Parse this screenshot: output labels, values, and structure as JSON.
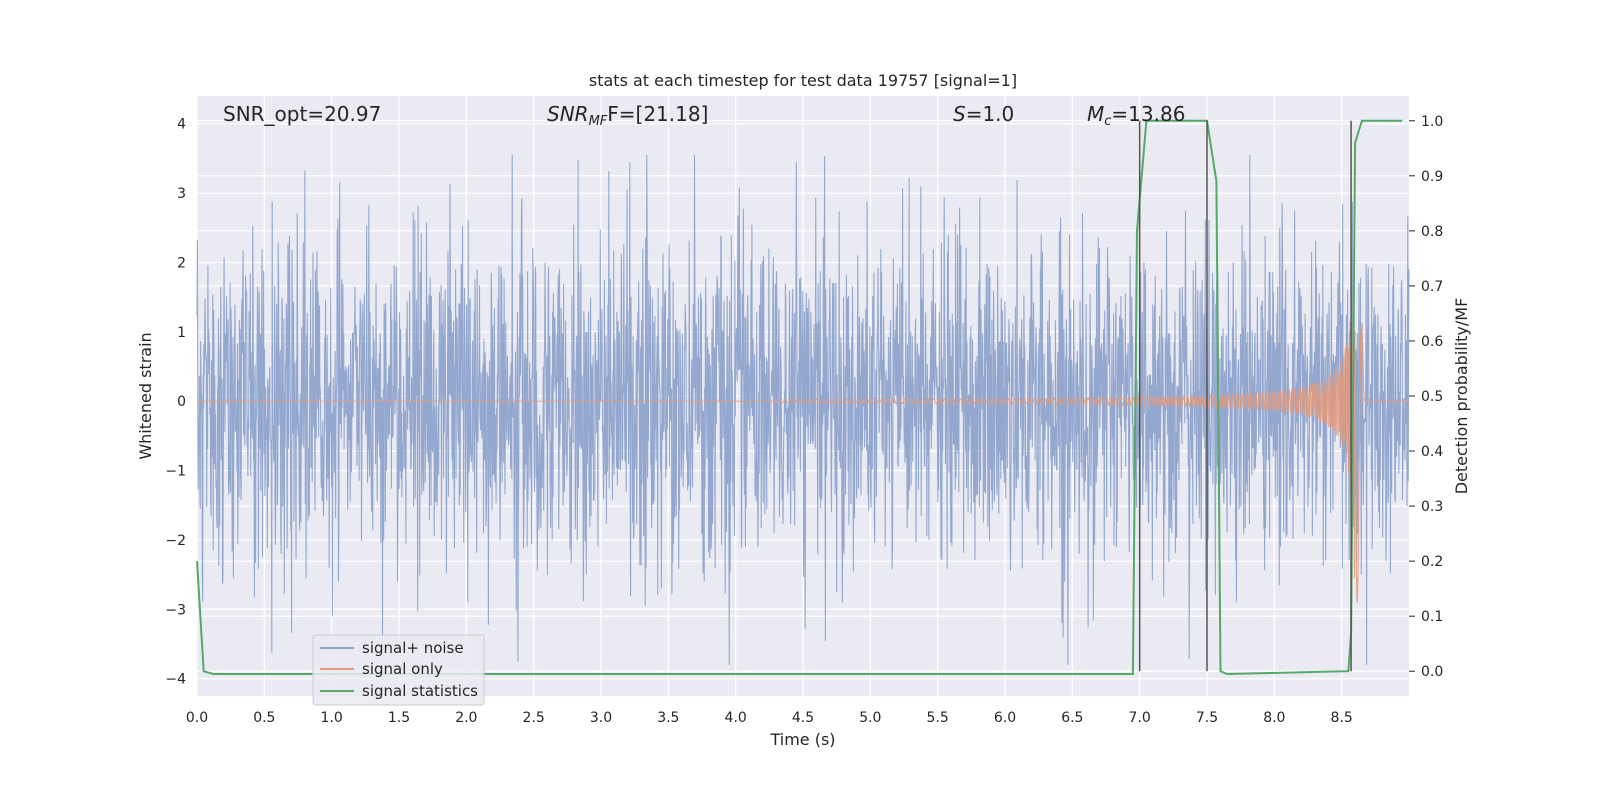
{
  "chart_data": {
    "type": "line",
    "title": "stats at each timestep for test data 19757 [signal=1]",
    "xlabel": "Time (s)",
    "ylabel": "Whitened strain",
    "ylabel_right": "Detection probability/MF",
    "xlim": [
      0.0,
      9.0
    ],
    "ylim": [
      -4.25,
      4.4
    ],
    "ylim_right": [
      -0.045,
      1.045
    ],
    "grid": true,
    "legend_placement": "lower-left",
    "x_ticks": [
      0.0,
      0.5,
      1.0,
      1.5,
      2.0,
      2.5,
      3.0,
      3.5,
      4.0,
      4.5,
      5.0,
      5.5,
      6.0,
      6.5,
      7.0,
      7.5,
      8.0,
      8.5
    ],
    "x_tick_labels": [
      "0.0",
      "0.5",
      "1.0",
      "1.5",
      "2.0",
      "2.5",
      "3.0",
      "3.5",
      "4.0",
      "4.5",
      "5.0",
      "5.5",
      "6.0",
      "6.5",
      "7.0",
      "7.5",
      "8.0",
      "8.5"
    ],
    "y_ticks": [
      -4,
      -3,
      -2,
      -1,
      0,
      1,
      2,
      3,
      4
    ],
    "y_tick_labels": [
      "−4",
      "−3",
      "−2",
      "−1",
      "0",
      "1",
      "2",
      "3",
      "4"
    ],
    "y_ticks_right": [
      0.0,
      0.1,
      0.2,
      0.3,
      0.4,
      0.5,
      0.6,
      0.7,
      0.8,
      0.9,
      1.0
    ],
    "y_tick_labels_right": [
      "0.0",
      "0.1",
      "0.2",
      "0.3",
      "0.4",
      "0.5",
      "0.6",
      "0.7",
      "0.8",
      "0.9",
      "1.0"
    ],
    "annotations": {
      "snr_opt": "SNR_opt=20.97",
      "snr_mf_main": "SNR",
      "snr_mf_sub": "MF",
      "snr_mf_rest": "F=[21.18]",
      "s_main": "S",
      "s_rest": "=1.0",
      "mc_main": "M",
      "mc_sub": "c",
      "mc_rest": "=13.86"
    },
    "vertical_markers": [
      7.0,
      7.5,
      8.57
    ],
    "series": [
      {
        "name": "signal+ noise",
        "axis": "left",
        "color": "#8fa4cc",
        "description_kind": "noise",
        "envelope": {
          "typical_amplitude": 1.6,
          "max_peak": 3.55,
          "min_peak": -3.8
        }
      },
      {
        "name": "signal only",
        "axis": "left",
        "color": "#e39a7c",
        "description_kind": "chirp",
        "chirp": {
          "start": 4.3,
          "merger": 8.6,
          "peak_amplitude": 3.2,
          "end": 8.67
        }
      },
      {
        "name": "signal statistics",
        "axis": "right",
        "color": "#55a868",
        "x": [
          0.0,
          0.05,
          0.12,
          0.2,
          6.95,
          6.98,
          7.05,
          7.1,
          7.5,
          7.57,
          7.6,
          7.65,
          8.55,
          8.57,
          8.6,
          8.65,
          8.72,
          8.95
        ],
        "values": [
          0.2,
          0.0,
          -0.005,
          -0.005,
          -0.005,
          0.8,
          1.0,
          1.0,
          1.0,
          0.89,
          0.0,
          -0.005,
          0.0,
          0.07,
          0.96,
          1.0,
          1.0,
          1.0
        ]
      }
    ]
  }
}
